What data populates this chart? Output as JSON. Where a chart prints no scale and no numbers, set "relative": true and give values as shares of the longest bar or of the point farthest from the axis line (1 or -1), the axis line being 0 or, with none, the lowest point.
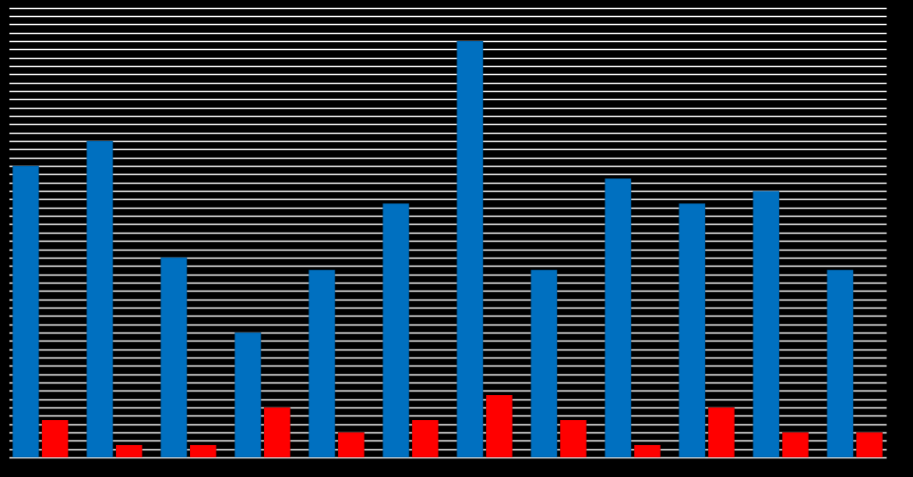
{
  "chart_data": {
    "type": "bar",
    "relative": true,
    "grid": "y",
    "categories": [
      null,
      null,
      null,
      null,
      null,
      null,
      null,
      null,
      null,
      null,
      null,
      null
    ],
    "series": [
      {
        "color": "#0070c0",
        "values": [
          0.7,
          0.76,
          0.48,
          0.3,
          0.45,
          0.61,
          1,
          0.45,
          0.67,
          0.61,
          0.64,
          0.45
        ]
      },
      {
        "color": "#ff0000",
        "values": [
          0.09,
          0.03,
          0.03,
          0.12,
          0.06,
          0.09,
          0.15,
          0.09,
          0.03,
          0.12,
          0.06,
          0.06
        ]
      }
    ]
  }
}
